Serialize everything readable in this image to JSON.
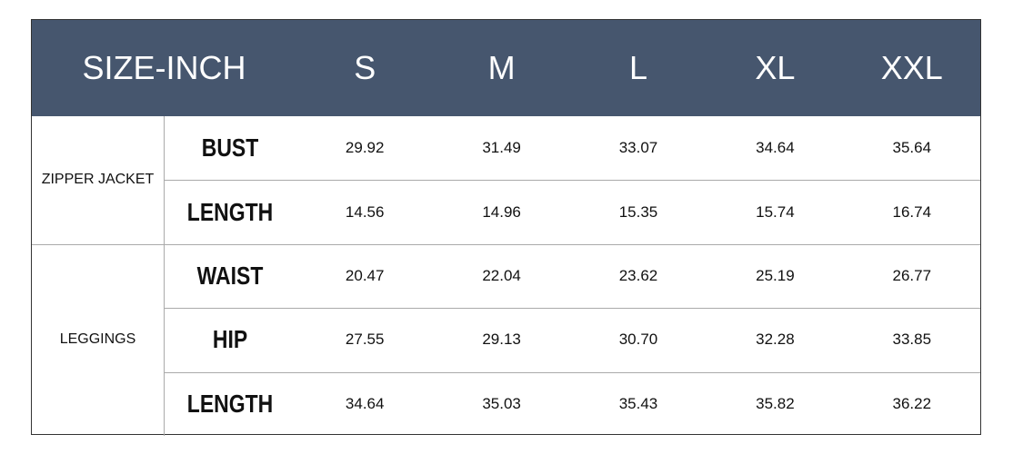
{
  "table": {
    "title": "SIZE-INCH",
    "sizes": [
      "S",
      "M",
      "L",
      "XL",
      "XXL"
    ],
    "groups": [
      {
        "name": "ZIPPER JACKET",
        "rows": [
          {
            "label": "BUST",
            "values": [
              "29.92",
              "31.49",
              "33.07",
              "34.64",
              "35.64"
            ]
          },
          {
            "label": "LENGTH",
            "values": [
              "14.56",
              "14.96",
              "15.35",
              "15.74",
              "16.74"
            ]
          }
        ]
      },
      {
        "name": "LEGGINGS",
        "rows": [
          {
            "label": "WAIST",
            "values": [
              "20.47",
              "22.04",
              "23.62",
              "25.19",
              "26.77"
            ]
          },
          {
            "label": "HIP",
            "values": [
              "27.55",
              "29.13",
              "30.70",
              "32.28",
              "33.85"
            ]
          },
          {
            "label": "LENGTH",
            "values": [
              "34.64",
              "35.03",
              "35.43",
              "35.82",
              "36.22"
            ]
          }
        ]
      }
    ]
  }
}
